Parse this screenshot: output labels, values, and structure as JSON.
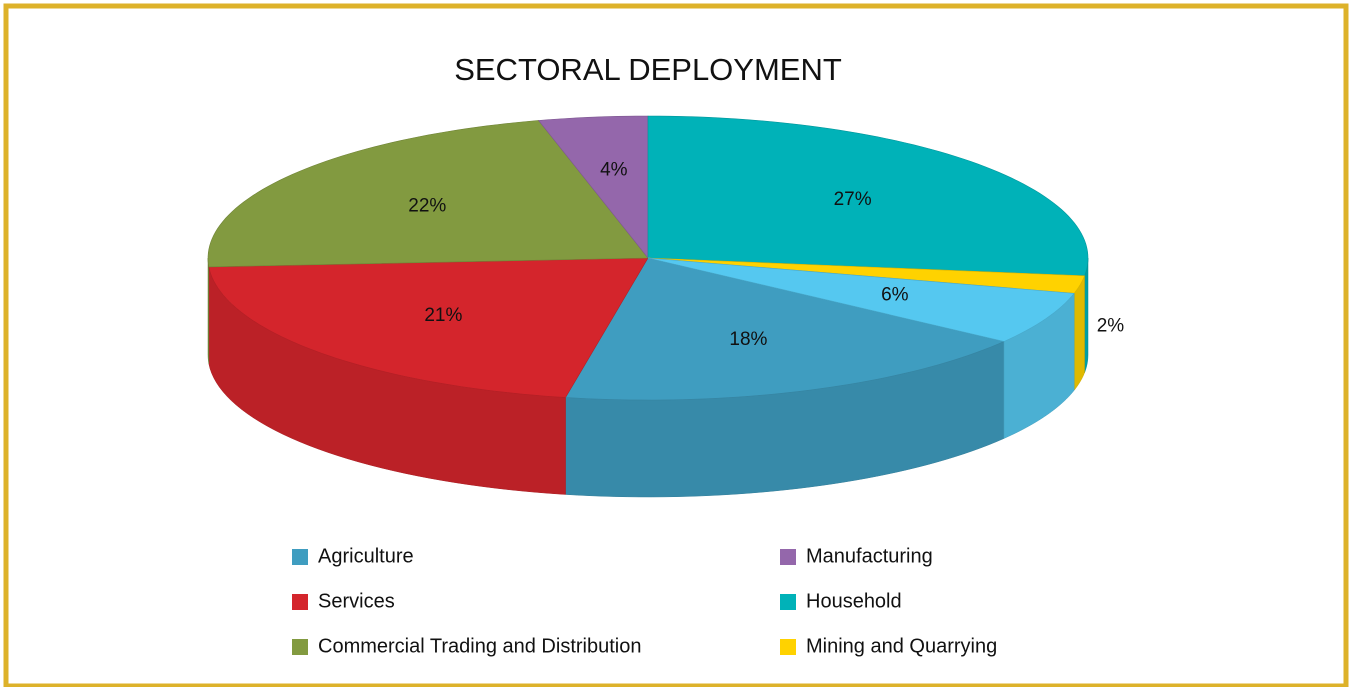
{
  "chart_data": {
    "type": "pie3d",
    "title": "SECTORAL DEPLOYMENT",
    "categories": [
      "Agriculture",
      "Services",
      "Commercial Trading and Distribution",
      "Manufacturing",
      "Household",
      "Mining and Quarrying",
      null
    ],
    "values": [
      18,
      21,
      22,
      4,
      27,
      2,
      6
    ],
    "value_labels": [
      "18%",
      "21%",
      "22%",
      "4%",
      "27%",
      "2%",
      "6%"
    ],
    "colors": [
      "#3f9dc0",
      "#d4252c",
      "#829a40",
      "#9467ab",
      "#00b2b8",
      "#ffd200",
      "#55c8f0"
    ]
  }
}
